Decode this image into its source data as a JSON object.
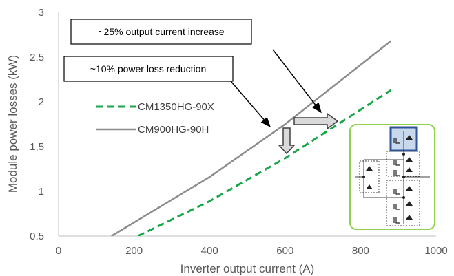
{
  "chart_data": {
    "type": "line",
    "xlabel": "Inverter output current (A)",
    "ylabel": "Module power losses (kW)",
    "xlim": [
      0,
      1000
    ],
    "ylim": [
      0.5,
      3
    ],
    "x_ticks": [
      "0",
      "200",
      "400",
      "600",
      "800",
      "1000"
    ],
    "y_ticks": [
      "0,5",
      "1",
      "1,5",
      "2",
      "2,5",
      "3"
    ],
    "grid": false,
    "legend_position": "upper-left",
    "series": [
      {
        "name": "CM1350HG-90X",
        "style": "dashed",
        "color": "#1aa64a",
        "x": [
          210,
          400,
          600,
          880
        ],
        "y": [
          0.5,
          0.89,
          1.37,
          2.13
        ]
      },
      {
        "name": "CM900HG-90H",
        "style": "solid",
        "color": "#8c8c8c",
        "x": [
          140,
          400,
          600,
          880
        ],
        "y": [
          0.5,
          1.16,
          1.75,
          2.68
        ]
      }
    ],
    "annotations": [
      "~25% output current increase",
      "~10% power loss reduction"
    ]
  },
  "colors": {
    "axis": "#bfbfbf",
    "inset_border": "#92d050",
    "highlight": "#2f5597"
  }
}
